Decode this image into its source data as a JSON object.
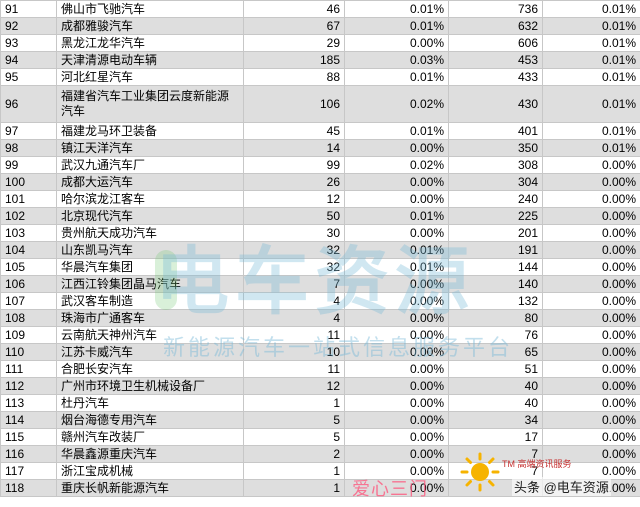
{
  "rows": [
    {
      "rank": "91",
      "name": "佛山市飞驰汽车",
      "v1": "46",
      "p1": "0.01%",
      "v2": "736",
      "p2": "0.01%"
    },
    {
      "rank": "92",
      "name": "成都雅骏汽车",
      "v1": "67",
      "p1": "0.01%",
      "v2": "632",
      "p2": "0.01%"
    },
    {
      "rank": "93",
      "name": "黑龙江龙华汽车",
      "v1": "29",
      "p1": "0.00%",
      "v2": "606",
      "p2": "0.01%"
    },
    {
      "rank": "94",
      "name": "天津清源电动车辆",
      "v1": "185",
      "p1": "0.03%",
      "v2": "453",
      "p2": "0.01%"
    },
    {
      "rank": "95",
      "name": "河北红星汽车",
      "v1": "88",
      "p1": "0.01%",
      "v2": "433",
      "p2": "0.01%"
    },
    {
      "rank": "96",
      "name": "福建省汽车工业集团云度新能源汽车",
      "v1": "106",
      "p1": "0.02%",
      "v2": "430",
      "p2": "0.01%"
    },
    {
      "rank": "97",
      "name": "福建龙马环卫装备",
      "v1": "45",
      "p1": "0.01%",
      "v2": "401",
      "p2": "0.01%"
    },
    {
      "rank": "98",
      "name": "镇江天洋汽车",
      "v1": "14",
      "p1": "0.00%",
      "v2": "350",
      "p2": "0.01%"
    },
    {
      "rank": "99",
      "name": "武汉九通汽车厂",
      "v1": "99",
      "p1": "0.02%",
      "v2": "308",
      "p2": "0.00%"
    },
    {
      "rank": "100",
      "name": "成都大运汽车",
      "v1": "26",
      "p1": "0.00%",
      "v2": "304",
      "p2": "0.00%"
    },
    {
      "rank": "101",
      "name": "哈尔滨龙江客车",
      "v1": "12",
      "p1": "0.00%",
      "v2": "240",
      "p2": "0.00%"
    },
    {
      "rank": "102",
      "name": "北京现代汽车",
      "v1": "50",
      "p1": "0.01%",
      "v2": "225",
      "p2": "0.00%"
    },
    {
      "rank": "103",
      "name": "贵州航天成功汽车",
      "v1": "30",
      "p1": "0.00%",
      "v2": "201",
      "p2": "0.00%"
    },
    {
      "rank": "104",
      "name": "山东凯马汽车",
      "v1": "32",
      "p1": "0.01%",
      "v2": "191",
      "p2": "0.00%"
    },
    {
      "rank": "105",
      "name": "华晨汽车集团",
      "v1": "32",
      "p1": "0.01%",
      "v2": "144",
      "p2": "0.00%"
    },
    {
      "rank": "106",
      "name": "江西江铃集团晶马汽车",
      "v1": "7",
      "p1": "0.00%",
      "v2": "140",
      "p2": "0.00%"
    },
    {
      "rank": "107",
      "name": "武汉客车制造",
      "v1": "4",
      "p1": "0.00%",
      "v2": "132",
      "p2": "0.00%"
    },
    {
      "rank": "108",
      "name": "珠海市广通客车",
      "v1": "4",
      "p1": "0.00%",
      "v2": "80",
      "p2": "0.00%"
    },
    {
      "rank": "109",
      "name": "云南航天神州汽车",
      "v1": "11",
      "p1": "0.00%",
      "v2": "76",
      "p2": "0.00%"
    },
    {
      "rank": "110",
      "name": "江苏卡威汽车",
      "v1": "10",
      "p1": "0.00%",
      "v2": "65",
      "p2": "0.00%"
    },
    {
      "rank": "111",
      "name": "合肥长安汽车",
      "v1": "11",
      "p1": "0.00%",
      "v2": "51",
      "p2": "0.00%"
    },
    {
      "rank": "112",
      "name": "广州市环境卫生机械设备厂",
      "v1": "12",
      "p1": "0.00%",
      "v2": "40",
      "p2": "0.00%"
    },
    {
      "rank": "113",
      "name": "杜丹汽车",
      "v1": "1",
      "p1": "0.00%",
      "v2": "40",
      "p2": "0.00%"
    },
    {
      "rank": "114",
      "name": "烟台海德专用汽车",
      "v1": "5",
      "p1": "0.00%",
      "v2": "34",
      "p2": "0.00%"
    },
    {
      "rank": "115",
      "name": "赣州汽车改装厂",
      "v1": "5",
      "p1": "0.00%",
      "v2": "17",
      "p2": "0.00%"
    },
    {
      "rank": "116",
      "name": "华晨鑫源重庆汽车",
      "v1": "2",
      "p1": "0.00%",
      "v2": "7",
      "p2": "0.00%"
    },
    {
      "rank": "117",
      "name": "浙江宝成机械",
      "v1": "1",
      "p1": "0.00%",
      "v2": "7",
      "p2": "0.00%"
    },
    {
      "rank": "118",
      "name": "重庆长帆新能源汽车",
      "v1": "1",
      "p1": "0.00%",
      "v2": "7",
      "p2": "0.00%"
    }
  ],
  "watermark": {
    "logo_text": "电车资源",
    "slogan": "新能源汽车一站式信息服务平台"
  },
  "overlay": {
    "love_text": "爱心三门",
    "tm_brand": "TM 高端资讯服务",
    "toutiao_text": "头条 @电车资源"
  }
}
